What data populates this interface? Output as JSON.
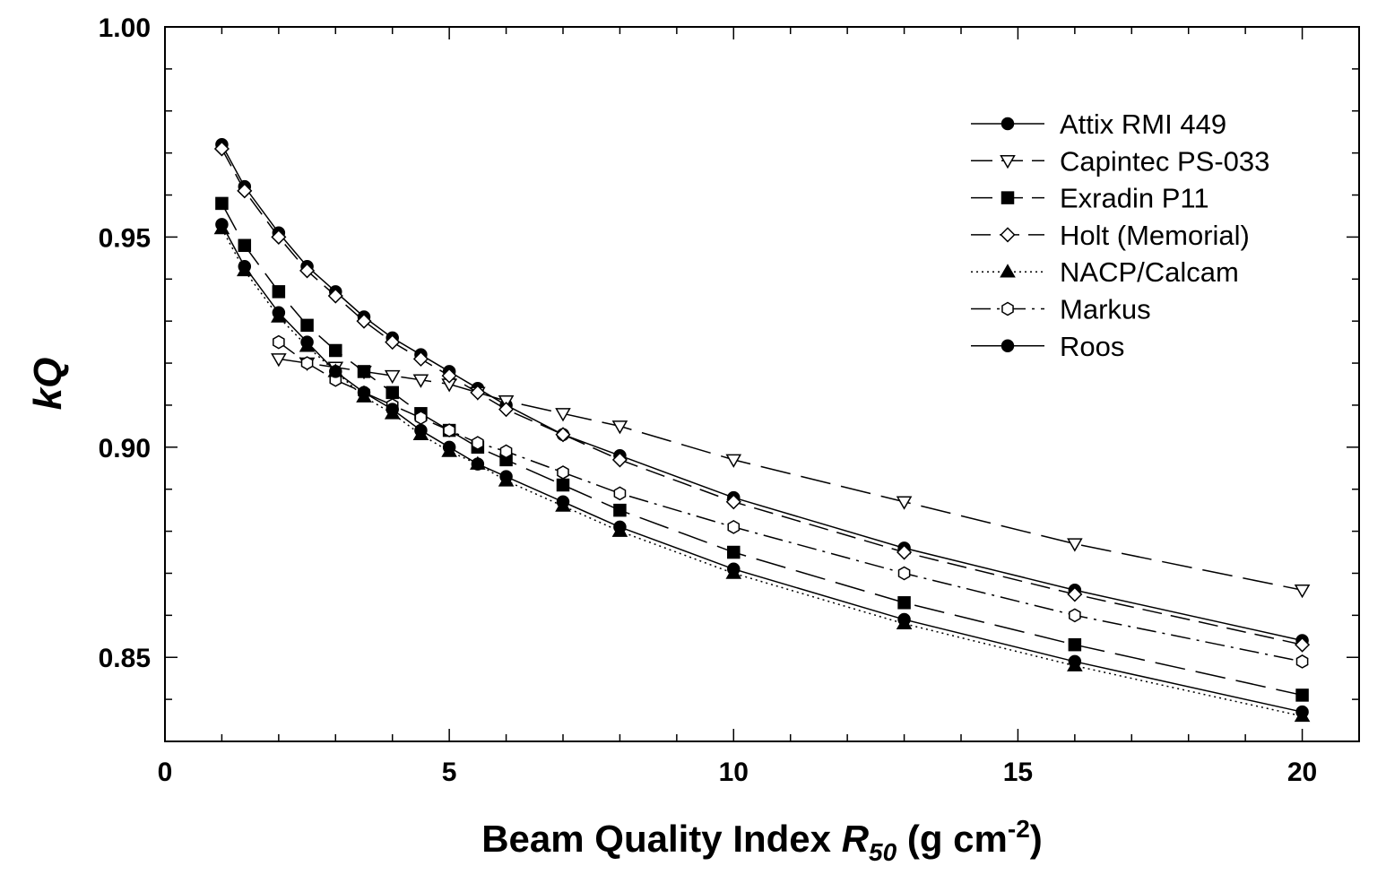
{
  "chart_data": {
    "type": "line",
    "xlabel": {
      "main": "Beam Quality Index ",
      "var": "R",
      "sub": "50",
      "unit_pre": " (g cm",
      "unit_sup": "-2",
      "unit_post": ")"
    },
    "ylabel": {
      "k": "k",
      "q": "Q"
    },
    "xlim": [
      0,
      21
    ],
    "ylim": [
      0.83,
      1.0
    ],
    "x_ticks": [
      0,
      5,
      10,
      15,
      20
    ],
    "x_tick_labels": [
      "0",
      "5",
      "10",
      "15",
      "20"
    ],
    "y_ticks": [
      0.85,
      0.9,
      0.95,
      1.0
    ],
    "y_tick_labels": [
      "0.85",
      "0.90",
      "0.95",
      "1.00"
    ],
    "grid": false,
    "legend_position": "top-right",
    "series": [
      {
        "name": "Attix RMI 449",
        "marker": "circle-filled",
        "dash": "solid",
        "x": [
          1,
          1.4,
          2,
          2.5,
          3,
          3.5,
          4,
          4.5,
          5,
          5.5,
          6,
          7,
          8,
          10,
          13,
          16,
          20
        ],
        "y": [
          0.972,
          0.962,
          0.951,
          0.943,
          0.937,
          0.931,
          0.926,
          0.922,
          0.918,
          0.914,
          0.91,
          0.903,
          0.898,
          0.888,
          0.876,
          0.866,
          0.854
        ]
      },
      {
        "name": "Capintec PS-033",
        "marker": "triangle-down-open",
        "dash": "long-dash",
        "x": [
          2,
          2.5,
          3,
          3.5,
          4,
          4.5,
          5,
          5.5,
          6,
          7,
          8,
          10,
          13,
          16,
          20
        ],
        "y": [
          0.921,
          0.92,
          0.919,
          0.918,
          0.917,
          0.916,
          0.915,
          0.913,
          0.911,
          0.908,
          0.905,
          0.897,
          0.887,
          0.877,
          0.866
        ]
      },
      {
        "name": "Exradin P11",
        "marker": "square-filled",
        "dash": "long-dash",
        "x": [
          1,
          1.4,
          2,
          2.5,
          3,
          3.5,
          4,
          4.5,
          5,
          5.5,
          6,
          7,
          8,
          10,
          13,
          16,
          20
        ],
        "y": [
          0.958,
          0.948,
          0.937,
          0.929,
          0.923,
          0.918,
          0.913,
          0.908,
          0.904,
          0.9,
          0.897,
          0.891,
          0.885,
          0.875,
          0.863,
          0.853,
          0.841
        ]
      },
      {
        "name": "Holt (Memorial)",
        "marker": "diamond-open",
        "dash": "dash",
        "x": [
          1,
          1.4,
          2,
          2.5,
          3,
          3.5,
          4,
          4.5,
          5,
          5.5,
          6,
          7,
          8,
          10,
          13,
          16,
          20
        ],
        "y": [
          0.971,
          0.961,
          0.95,
          0.942,
          0.936,
          0.93,
          0.925,
          0.921,
          0.917,
          0.913,
          0.909,
          0.903,
          0.897,
          0.887,
          0.875,
          0.865,
          0.853
        ]
      },
      {
        "name": "NACP/Calcam",
        "marker": "triangle-up-filled",
        "dash": "dotted",
        "x": [
          1,
          1.4,
          2,
          2.5,
          3,
          3.5,
          4,
          4.5,
          5,
          5.5,
          6,
          7,
          8,
          10,
          13,
          16,
          20
        ],
        "y": [
          0.952,
          0.942,
          0.931,
          0.924,
          0.918,
          0.912,
          0.908,
          0.903,
          0.899,
          0.896,
          0.892,
          0.886,
          0.88,
          0.87,
          0.858,
          0.848,
          0.836
        ]
      },
      {
        "name": "Markus",
        "marker": "hexagon-open",
        "dash": "dash-dot",
        "x": [
          2,
          2.5,
          3,
          3.5,
          4,
          4.5,
          5,
          5.5,
          6,
          7,
          8,
          10,
          13,
          16,
          20
        ],
        "y": [
          0.925,
          0.92,
          0.916,
          0.913,
          0.91,
          0.907,
          0.904,
          0.901,
          0.899,
          0.894,
          0.889,
          0.881,
          0.87,
          0.86,
          0.849
        ]
      },
      {
        "name": "Roos",
        "marker": "circle-filled",
        "dash": "solid",
        "x": [
          1,
          1.4,
          2,
          2.5,
          3,
          3.5,
          4,
          4.5,
          5,
          5.5,
          6,
          7,
          8,
          10,
          13,
          16,
          20
        ],
        "y": [
          0.953,
          0.943,
          0.932,
          0.925,
          0.918,
          0.913,
          0.909,
          0.904,
          0.9,
          0.896,
          0.893,
          0.887,
          0.881,
          0.871,
          0.859,
          0.849,
          0.837
        ]
      }
    ]
  }
}
